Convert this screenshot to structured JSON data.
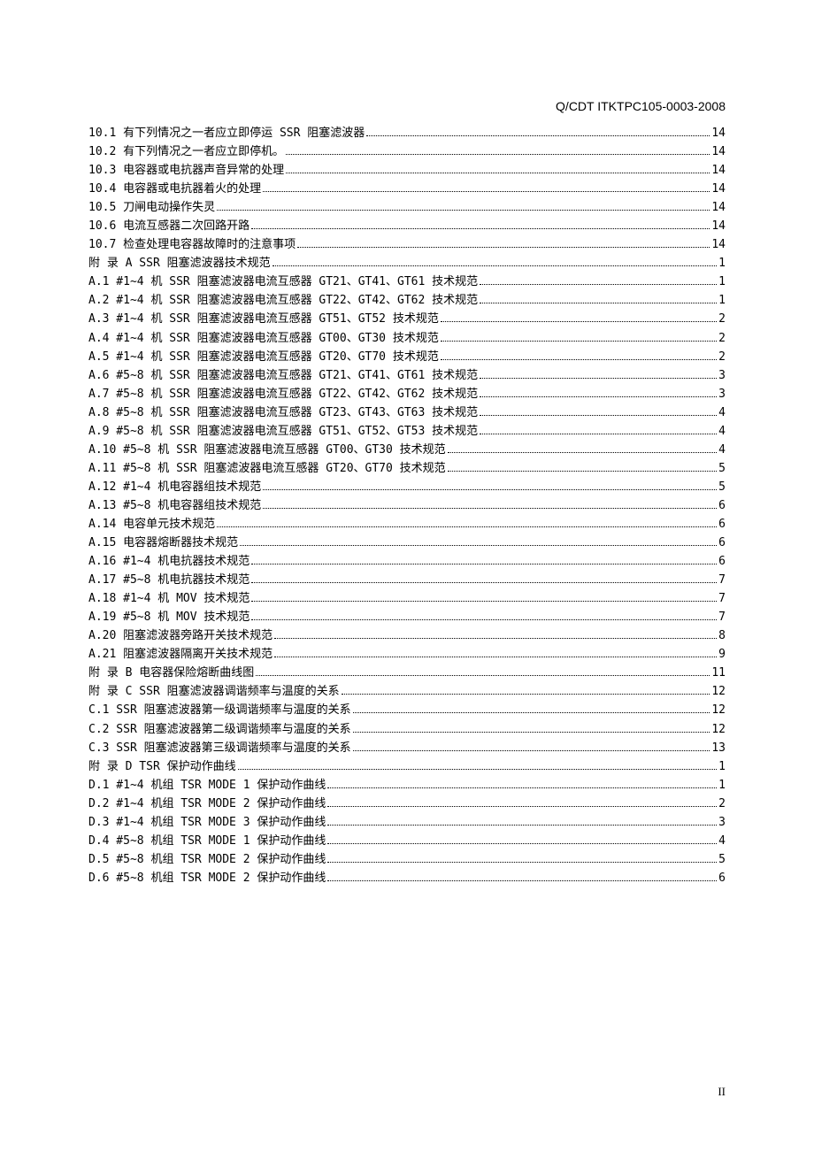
{
  "header": {
    "doc_id": "Q/CDT ITKTPC105-0003-2008"
  },
  "toc": {
    "entries": [
      {
        "label": "10.1 有下列情况之一者应立即停运 SSR 阻塞滤波器",
        "page": "14"
      },
      {
        "label": "10.2 有下列情况之一者应立即停机。",
        "page": "14"
      },
      {
        "label": "10.3 电容器或电抗器声音异常的处理",
        "page": "14"
      },
      {
        "label": "10.4 电容器或电抗器着火的处理",
        "page": "14"
      },
      {
        "label": "10.5 刀闸电动操作失灵",
        "page": "14"
      },
      {
        "label": "10.6 电流互感器二次回路开路",
        "page": "14"
      },
      {
        "label": "10.7 检查处理电容器故障时的注意事项",
        "page": "14"
      },
      {
        "label": "附  录  A SSR 阻塞滤波器技术规范",
        "page": "1"
      },
      {
        "label": "A.1 #1~4 机 SSR 阻塞滤波器电流互感器 GT21、GT41、GT61 技术规范",
        "page": "1"
      },
      {
        "label": "A.2 #1~4 机 SSR 阻塞滤波器电流互感器 GT22、GT42、GT62 技术规范",
        "page": "1"
      },
      {
        "label": "A.3 #1~4 机 SSR 阻塞滤波器电流互感器 GT51、GT52 技术规范",
        "page": "2"
      },
      {
        "label": "A.4 #1~4 机 SSR 阻塞滤波器电流互感器 GT00、GT30 技术规范",
        "page": "2"
      },
      {
        "label": "A.5 #1~4 机 SSR 阻塞滤波器电流互感器 GT20、GT70 技术规范",
        "page": "2"
      },
      {
        "label": "A.6 #5~8 机 SSR 阻塞滤波器电流互感器 GT21、GT41、GT61 技术规范",
        "page": "3"
      },
      {
        "label": "A.7 #5~8 机 SSR 阻塞滤波器电流互感器 GT22、GT42、GT62 技术规范",
        "page": "3"
      },
      {
        "label": "A.8 #5~8 机 SSR 阻塞滤波器电流互感器 GT23、GT43、GT63 技术规范",
        "page": "4"
      },
      {
        "label": "A.9 #5~8 机 SSR 阻塞滤波器电流互感器 GT51、GT52、GT53 技术规范",
        "page": "4"
      },
      {
        "label": "A.10 #5~8 机 SSR 阻塞滤波器电流互感器 GT00、GT30 技术规范",
        "page": "4"
      },
      {
        "label": "A.11 #5~8 机 SSR 阻塞滤波器电流互感器 GT20、GT70 技术规范",
        "page": "5"
      },
      {
        "label": "A.12 #1~4 机电容器组技术规范",
        "page": "5"
      },
      {
        "label": "A.13 #5~8 机电容器组技术规范",
        "page": "6"
      },
      {
        "label": "A.14 电容单元技术规范",
        "page": "6"
      },
      {
        "label": "A.15 电容器熔断器技术规范",
        "page": "6"
      },
      {
        "label": "A.16 #1~4 机电抗器技术规范",
        "page": "6"
      },
      {
        "label": "A.17 #5~8 机电抗器技术规范",
        "page": "7"
      },
      {
        "label": "A.18 #1~4 机 MOV 技术规范",
        "page": "7"
      },
      {
        "label": "A.19 #5~8 机 MOV 技术规范",
        "page": "7"
      },
      {
        "label": "A.20 阻塞滤波器旁路开关技术规范",
        "page": "8"
      },
      {
        "label": "A.21 阻塞滤波器隔离开关技术规范",
        "page": "9"
      },
      {
        "label": "附  录  B 电容器保险熔断曲线图",
        "page": "11"
      },
      {
        "label": "附  录  C SSR 阻塞滤波器调谐频率与温度的关系",
        "page": "12"
      },
      {
        "label": "C.1 SSR 阻塞滤波器第一级调谐频率与温度的关系",
        "page": "12"
      },
      {
        "label": "C.2 SSR 阻塞滤波器第二级调谐频率与温度的关系",
        "page": "12"
      },
      {
        "label": "C.3 SSR 阻塞滤波器第三级调谐频率与温度的关系",
        "page": "13"
      },
      {
        "label": "附  录  D TSR 保护动作曲线",
        "page": "1"
      },
      {
        "label": "D.1 #1~4 机组 TSR MODE 1 保护动作曲线",
        "page": "1"
      },
      {
        "label": "D.2 #1~4 机组 TSR MODE 2 保护动作曲线",
        "page": "2"
      },
      {
        "label": "D.3 #1~4 机组 TSR MODE 3 保护动作曲线",
        "page": "3"
      },
      {
        "label": "D.4 #5~8 机组 TSR MODE 1 保护动作曲线",
        "page": "4"
      },
      {
        "label": "D.5 #5~8 机组 TSR MODE 2 保护动作曲线",
        "page": "5"
      },
      {
        "label": "D.6 #5~8 机组 TSR MODE 2 保护动作曲线",
        "page": "6"
      }
    ]
  },
  "footer": {
    "page_number": "II"
  }
}
